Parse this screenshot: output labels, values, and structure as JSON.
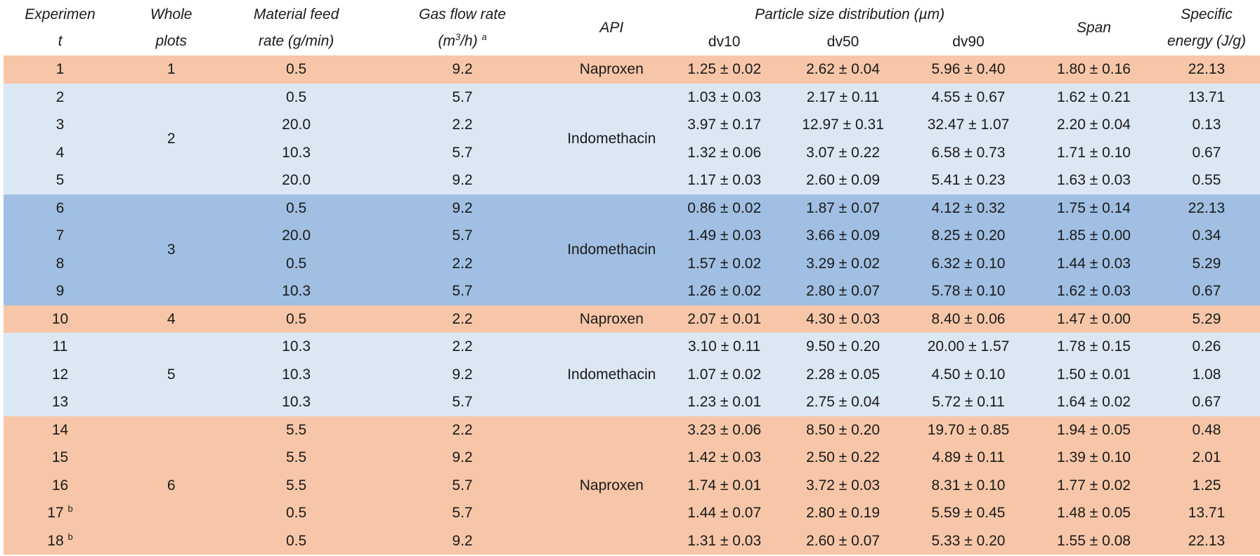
{
  "headers": {
    "experiment_line1": "Experimen",
    "experiment_line2": "t",
    "whole_plots_line1": "Whole",
    "whole_plots_line2": "plots",
    "feed_line1": "Material feed",
    "feed_line2": "rate (g/min)",
    "gas_line1": "Gas flow rate",
    "gas_line2_a": "(m",
    "gas_line2_sup": "3",
    "gas_line2_b": "/h) ",
    "gas_line2_note": "a",
    "api": "API",
    "psd": "Particle size distribution (µm)",
    "dv10": "dv10",
    "dv50": "dv50",
    "dv90": "dv90",
    "span": "Span",
    "energy_line1": "Specific",
    "energy_line2": "energy (J/g)"
  },
  "group_colors": {
    "orange": "#f7c6a8",
    "light_blue": "#dce7f4",
    "mid_blue": "#a0bfe3"
  },
  "rows": [
    {
      "experiment": "1",
      "note": "",
      "whole_plot": "1",
      "feed": "0.5",
      "gas": "9.2",
      "api": "Naproxen",
      "dv10": "1.25 ± 0.02",
      "dv50": "2.62 ± 0.04",
      "dv90": "5.96 ± 0.40",
      "span": "1.80 ± 0.16",
      "energy": "22.13"
    },
    {
      "experiment": "2",
      "note": "",
      "whole_plot": "2",
      "feed": "0.5",
      "gas": "5.7",
      "api": "Indomethacin",
      "dv10": "1.03 ± 0.03",
      "dv50": "2.17 ± 0.11",
      "dv90": "4.55 ± 0.67",
      "span": "1.62 ± 0.21",
      "energy": "13.71"
    },
    {
      "experiment": "3",
      "note": "",
      "feed": "20.0",
      "gas": "2.2",
      "dv10": "3.97 ± 0.17",
      "dv50": "12.97 ± 0.31",
      "dv90": "32.47 ± 1.07",
      "span": "2.20 ± 0.04",
      "energy": "0.13"
    },
    {
      "experiment": "4",
      "note": "",
      "feed": "10.3",
      "gas": "5.7",
      "dv10": "1.32 ± 0.06",
      "dv50": "3.07 ± 0.22",
      "dv90": "6.58 ± 0.73",
      "span": "1.71 ± 0.10",
      "energy": "0.67"
    },
    {
      "experiment": "5",
      "note": "",
      "feed": "20.0",
      "gas": "9.2",
      "dv10": "1.17 ± 0.03",
      "dv50": "2.60 ± 0.09",
      "dv90": "5.41 ± 0.23",
      "span": "1.63 ± 0.03",
      "energy": "0.55"
    },
    {
      "experiment": "6",
      "note": "",
      "whole_plot": "3",
      "feed": "0.5",
      "gas": "9.2",
      "api": "Indomethacin",
      "dv10": "0.86 ± 0.02",
      "dv50": "1.87 ± 0.07",
      "dv90": "4.12 ± 0.32",
      "span": "1.75 ± 0.14",
      "energy": "22.13"
    },
    {
      "experiment": "7",
      "note": "",
      "feed": "20.0",
      "gas": "5.7",
      "dv10": "1.49 ± 0.03",
      "dv50": "3.66 ± 0.09",
      "dv90": "8.25 ± 0.20",
      "span": "1.85 ± 0.00",
      "energy": "0.34"
    },
    {
      "experiment": "8",
      "note": "",
      "feed": "0.5",
      "gas": "2.2",
      "dv10": "1.57 ± 0.02",
      "dv50": "3.29 ± 0.02",
      "dv90": "6.32 ± 0.10",
      "span": "1.44 ± 0.03",
      "energy": "5.29"
    },
    {
      "experiment": "9",
      "note": "",
      "feed": "10.3",
      "gas": "5.7",
      "dv10": "1.26 ± 0.02",
      "dv50": "2.80 ± 0.07",
      "dv90": "5.78 ± 0.10",
      "span": "1.62 ± 0.03",
      "energy": "0.67"
    },
    {
      "experiment": "10",
      "note": "",
      "whole_plot": "4",
      "feed": "0.5",
      "gas": "2.2",
      "api": "Naproxen",
      "dv10": "2.07 ± 0.01",
      "dv50": "4.30 ± 0.03",
      "dv90": "8.40 ± 0.06",
      "span": "1.47 ± 0.00",
      "energy": "5.29"
    },
    {
      "experiment": "11",
      "note": "",
      "whole_plot": "5",
      "feed": "10.3",
      "gas": "2.2",
      "api": "Indomethacin",
      "dv10": "3.10 ± 0.11",
      "dv50": "9.50 ± 0.20",
      "dv90": "20.00 ± 1.57",
      "span": "1.78 ± 0.15",
      "energy": "0.26"
    },
    {
      "experiment": "12",
      "note": "",
      "feed": "10.3",
      "gas": "9.2",
      "dv10": "1.07 ± 0.02",
      "dv50": "2.28 ± 0.05",
      "dv90": "4.50 ± 0.10",
      "span": "1.50 ± 0.01",
      "energy": "1.08"
    },
    {
      "experiment": "13",
      "note": "",
      "feed": "10.3",
      "gas": "5.7",
      "dv10": "1.23 ± 0.01",
      "dv50": "2.75 ± 0.04",
      "dv90": "5.72 ± 0.11",
      "span": "1.64 ± 0.02",
      "energy": "0.67"
    },
    {
      "experiment": "14",
      "note": "",
      "whole_plot": "6",
      "feed": "5.5",
      "gas": "2.2",
      "api": "Naproxen",
      "dv10": "3.23 ± 0.06",
      "dv50": "8.50 ± 0.20",
      "dv90": "19.70 ± 0.85",
      "span": "1.94 ± 0.05",
      "energy": "0.48"
    },
    {
      "experiment": "15",
      "note": "",
      "feed": "5.5",
      "gas": "9.2",
      "dv10": "1.42 ± 0.03",
      "dv50": "2.50 ± 0.22",
      "dv90": "4.89 ± 0.11",
      "span": "1.39 ± 0.10",
      "energy": "2.01"
    },
    {
      "experiment": "16",
      "note": "",
      "feed": "5.5",
      "gas": "5.7",
      "dv10": "1.74 ± 0.01",
      "dv50": "3.72 ± 0.03",
      "dv90": "8.31 ± 0.10",
      "span": "1.77 ± 0.02",
      "energy": "1.25"
    },
    {
      "experiment": "17",
      "note": "b",
      "feed": "0.5",
      "gas": "5.7",
      "dv10": "1.44 ± 0.07",
      "dv50": "2.80 ± 0.19",
      "dv90": "5.59 ± 0.45",
      "span": "1.48 ± 0.05",
      "energy": "13.71"
    },
    {
      "experiment": "18",
      "note": "b",
      "feed": "0.5",
      "gas": "9.2",
      "dv10": "1.31 ± 0.03",
      "dv50": "2.60 ± 0.07",
      "dv90": "5.33 ± 0.20",
      "span": "1.55 ± 0.08",
      "energy": "22.13"
    }
  ]
}
